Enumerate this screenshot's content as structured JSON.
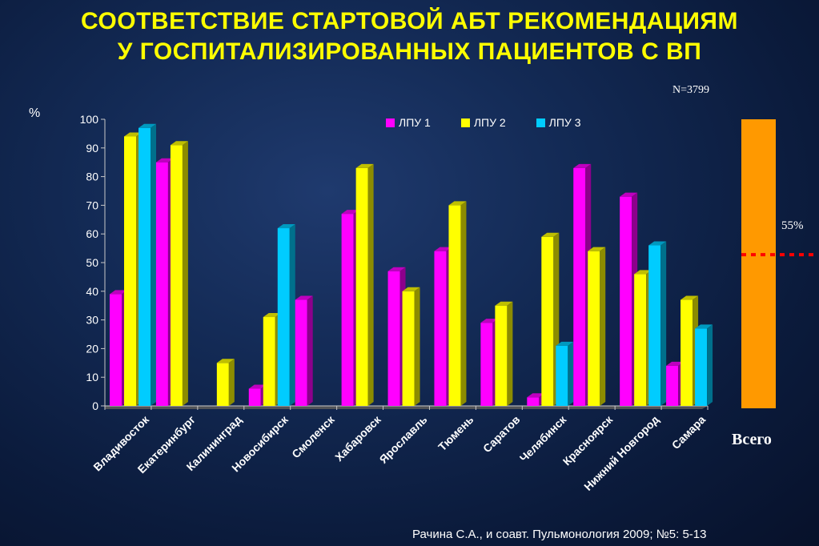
{
  "title_line1": "СООТВЕТСТВИЕ СТАРТОВОЙ АБТ РЕКОМЕНДАЦИЯМ",
  "title_line2": "У ГОСПИТАЛИЗИРОВАННЫХ ПАЦИЕНТОВ С ВП",
  "n_label": "N=3799",
  "unit_label": "%",
  "total_label": "Всего",
  "total_percent_label": "55%",
  "citation": "Рачина С.А., и соавт. Пульмонология 2009; №5: 5-13",
  "colors": {
    "series1": "#ff00ff",
    "series2": "#ffff00",
    "series3": "#00ccff",
    "total_bar": "#ff9900",
    "reference_line": "#ff0000",
    "title": "#ffff00"
  },
  "chart_data": [
    {
      "type": "bar",
      "categories": [
        "Владивосток",
        "Екатеринбург",
        "Калининград",
        "Новосибирск",
        "Смоленск",
        "Хабаровск",
        "Ярославль",
        "Тюмень",
        "Саратов",
        "Челябинск",
        "Красноярск",
        "Нижний Новгород",
        "Самара"
      ],
      "series": [
        {
          "name": "ЛПУ 1",
          "values": [
            39,
            85,
            0,
            6,
            37,
            67,
            47,
            54,
            29,
            3,
            83,
            73,
            14
          ]
        },
        {
          "name": "ЛПУ 2",
          "values": [
            94,
            91,
            15,
            31,
            0,
            83,
            40,
            70,
            35,
            59,
            54,
            46,
            37
          ]
        },
        {
          "name": "ЛПУ 3",
          "values": [
            97,
            0,
            0,
            62,
            0,
            0,
            0,
            0,
            0,
            21,
            0,
            56,
            27
          ]
        }
      ],
      "ylim": [
        0,
        100
      ],
      "yticks": [
        0,
        10,
        20,
        30,
        40,
        50,
        60,
        70,
        80,
        90,
        100
      ],
      "ylabel": "%",
      "legend": "top"
    },
    {
      "type": "bar",
      "categories": [
        "Всего"
      ],
      "values": [
        100
      ],
      "reference_line": 55,
      "reference_label": "55%"
    }
  ]
}
